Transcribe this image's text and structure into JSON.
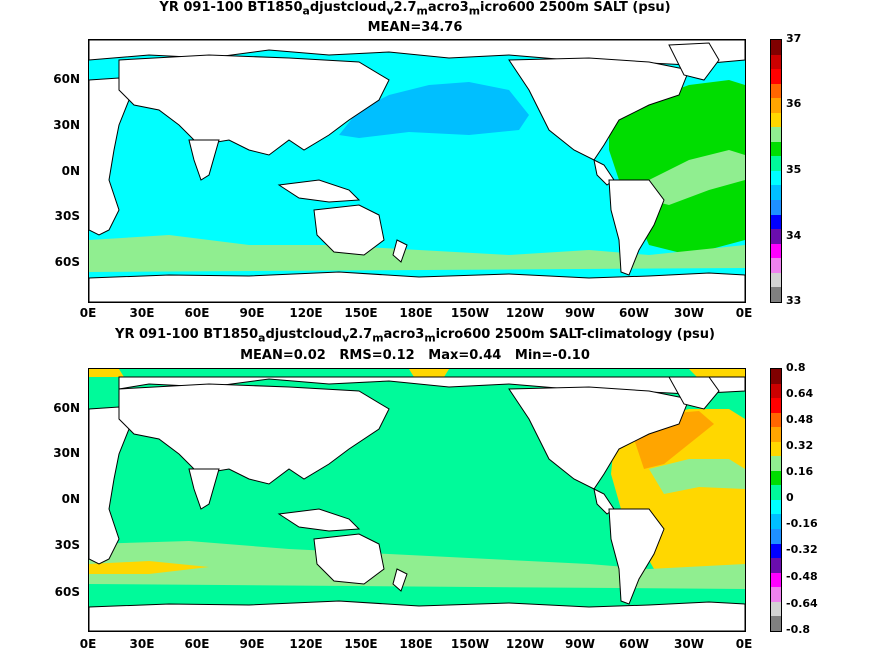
{
  "top_panel": {
    "title_line1": {
      "pre": "YR 091-100 BT1850",
      "s1": "a",
      "t1": "djustcloud",
      "s2": "v",
      "t2": "2.7",
      "s3": "m",
      "t3": "acro3",
      "s4": "m",
      "t4": "icro600 2500m SALT (psu)"
    },
    "title_line2": "MEAN=34.76",
    "ocean_color": "#00ffff",
    "colorbar": {
      "labels": [
        "37",
        "36",
        "35",
        "34",
        "33"
      ],
      "colors": [
        "#800000",
        "#cc0000",
        "#ff0000",
        "#ff6600",
        "#ffa500",
        "#ffd700",
        "#90ee90",
        "#00dd00",
        "#00fa9a",
        "#00ffff",
        "#00bfff",
        "#1e90ff",
        "#0000ff",
        "#6a0dad",
        "#ff00ff",
        "#ee82ee",
        "#d3d3d3",
        "#808080"
      ]
    }
  },
  "bottom_panel": {
    "title_line1": {
      "pre": "YR 091-100 BT1850",
      "s1": "a",
      "t1": "djustcloud",
      "s2": "v",
      "t2": "2.7",
      "s3": "m",
      "t3": "acro3",
      "s4": "m",
      "t4": "icro600 2500m SALT-climatology (psu)"
    },
    "title_line2": "MEAN=0.02   RMS=0.12   Max=0.44   Min=-0.10",
    "ocean_color": "#00fa9a",
    "colorbar": {
      "labels": [
        "0.8",
        "0.64",
        "0.48",
        "0.32",
        "0.16",
        "0",
        "-0.16",
        "-0.32",
        "-0.48",
        "-0.64",
        "-0.8"
      ],
      "colors": [
        "#800000",
        "#cc0000",
        "#ff0000",
        "#ff6600",
        "#ffa500",
        "#ffd700",
        "#90ee90",
        "#00dd00",
        "#00fa9a",
        "#00ffff",
        "#00bfff",
        "#1e90ff",
        "#0000ff",
        "#6a0dad",
        "#ff00ff",
        "#ee82ee",
        "#d3d3d3",
        "#808080"
      ]
    }
  },
  "axes": {
    "lat_labels": [
      "60N",
      "30N",
      "0N",
      "30S",
      "60S"
    ],
    "lon_labels": [
      "0E",
      "30E",
      "60E",
      "90E",
      "120E",
      "150E",
      "180E",
      "150W",
      "120W",
      "90W",
      "60W",
      "30W",
      "0E"
    ]
  },
  "colors": {
    "land": "#ffffff",
    "coast": "#000000",
    "salty_atlantic_top": "#00dd00",
    "fresher_pacific_top": "#00bfff",
    "pos_anomaly": "#ffd700",
    "strong_pos_anomaly": "#ffa500"
  }
}
